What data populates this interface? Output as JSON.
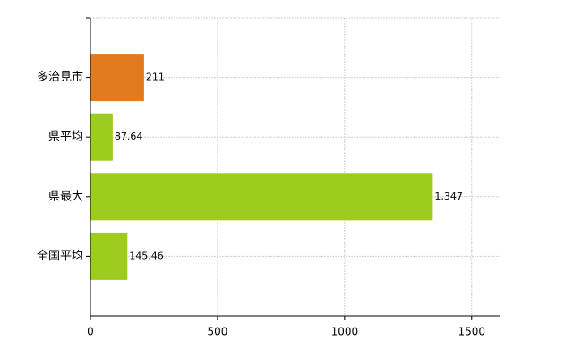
{
  "chart_data": {
    "type": "bar",
    "orientation": "horizontal",
    "categories": [
      "多治見市",
      "県平均",
      "県最大",
      "全国平均"
    ],
    "values": [
      211,
      87.64,
      1347,
      145.46
    ],
    "value_labels": [
      "211",
      "87.64",
      "1,347",
      "145.46"
    ],
    "colors": [
      "#e07b1f",
      "#9dcb1e",
      "#9dcb1e",
      "#9dcb1e"
    ],
    "xlim": [
      0,
      1610
    ],
    "xticks": [
      0,
      500,
      1000,
      1500
    ],
    "grid": true
  }
}
